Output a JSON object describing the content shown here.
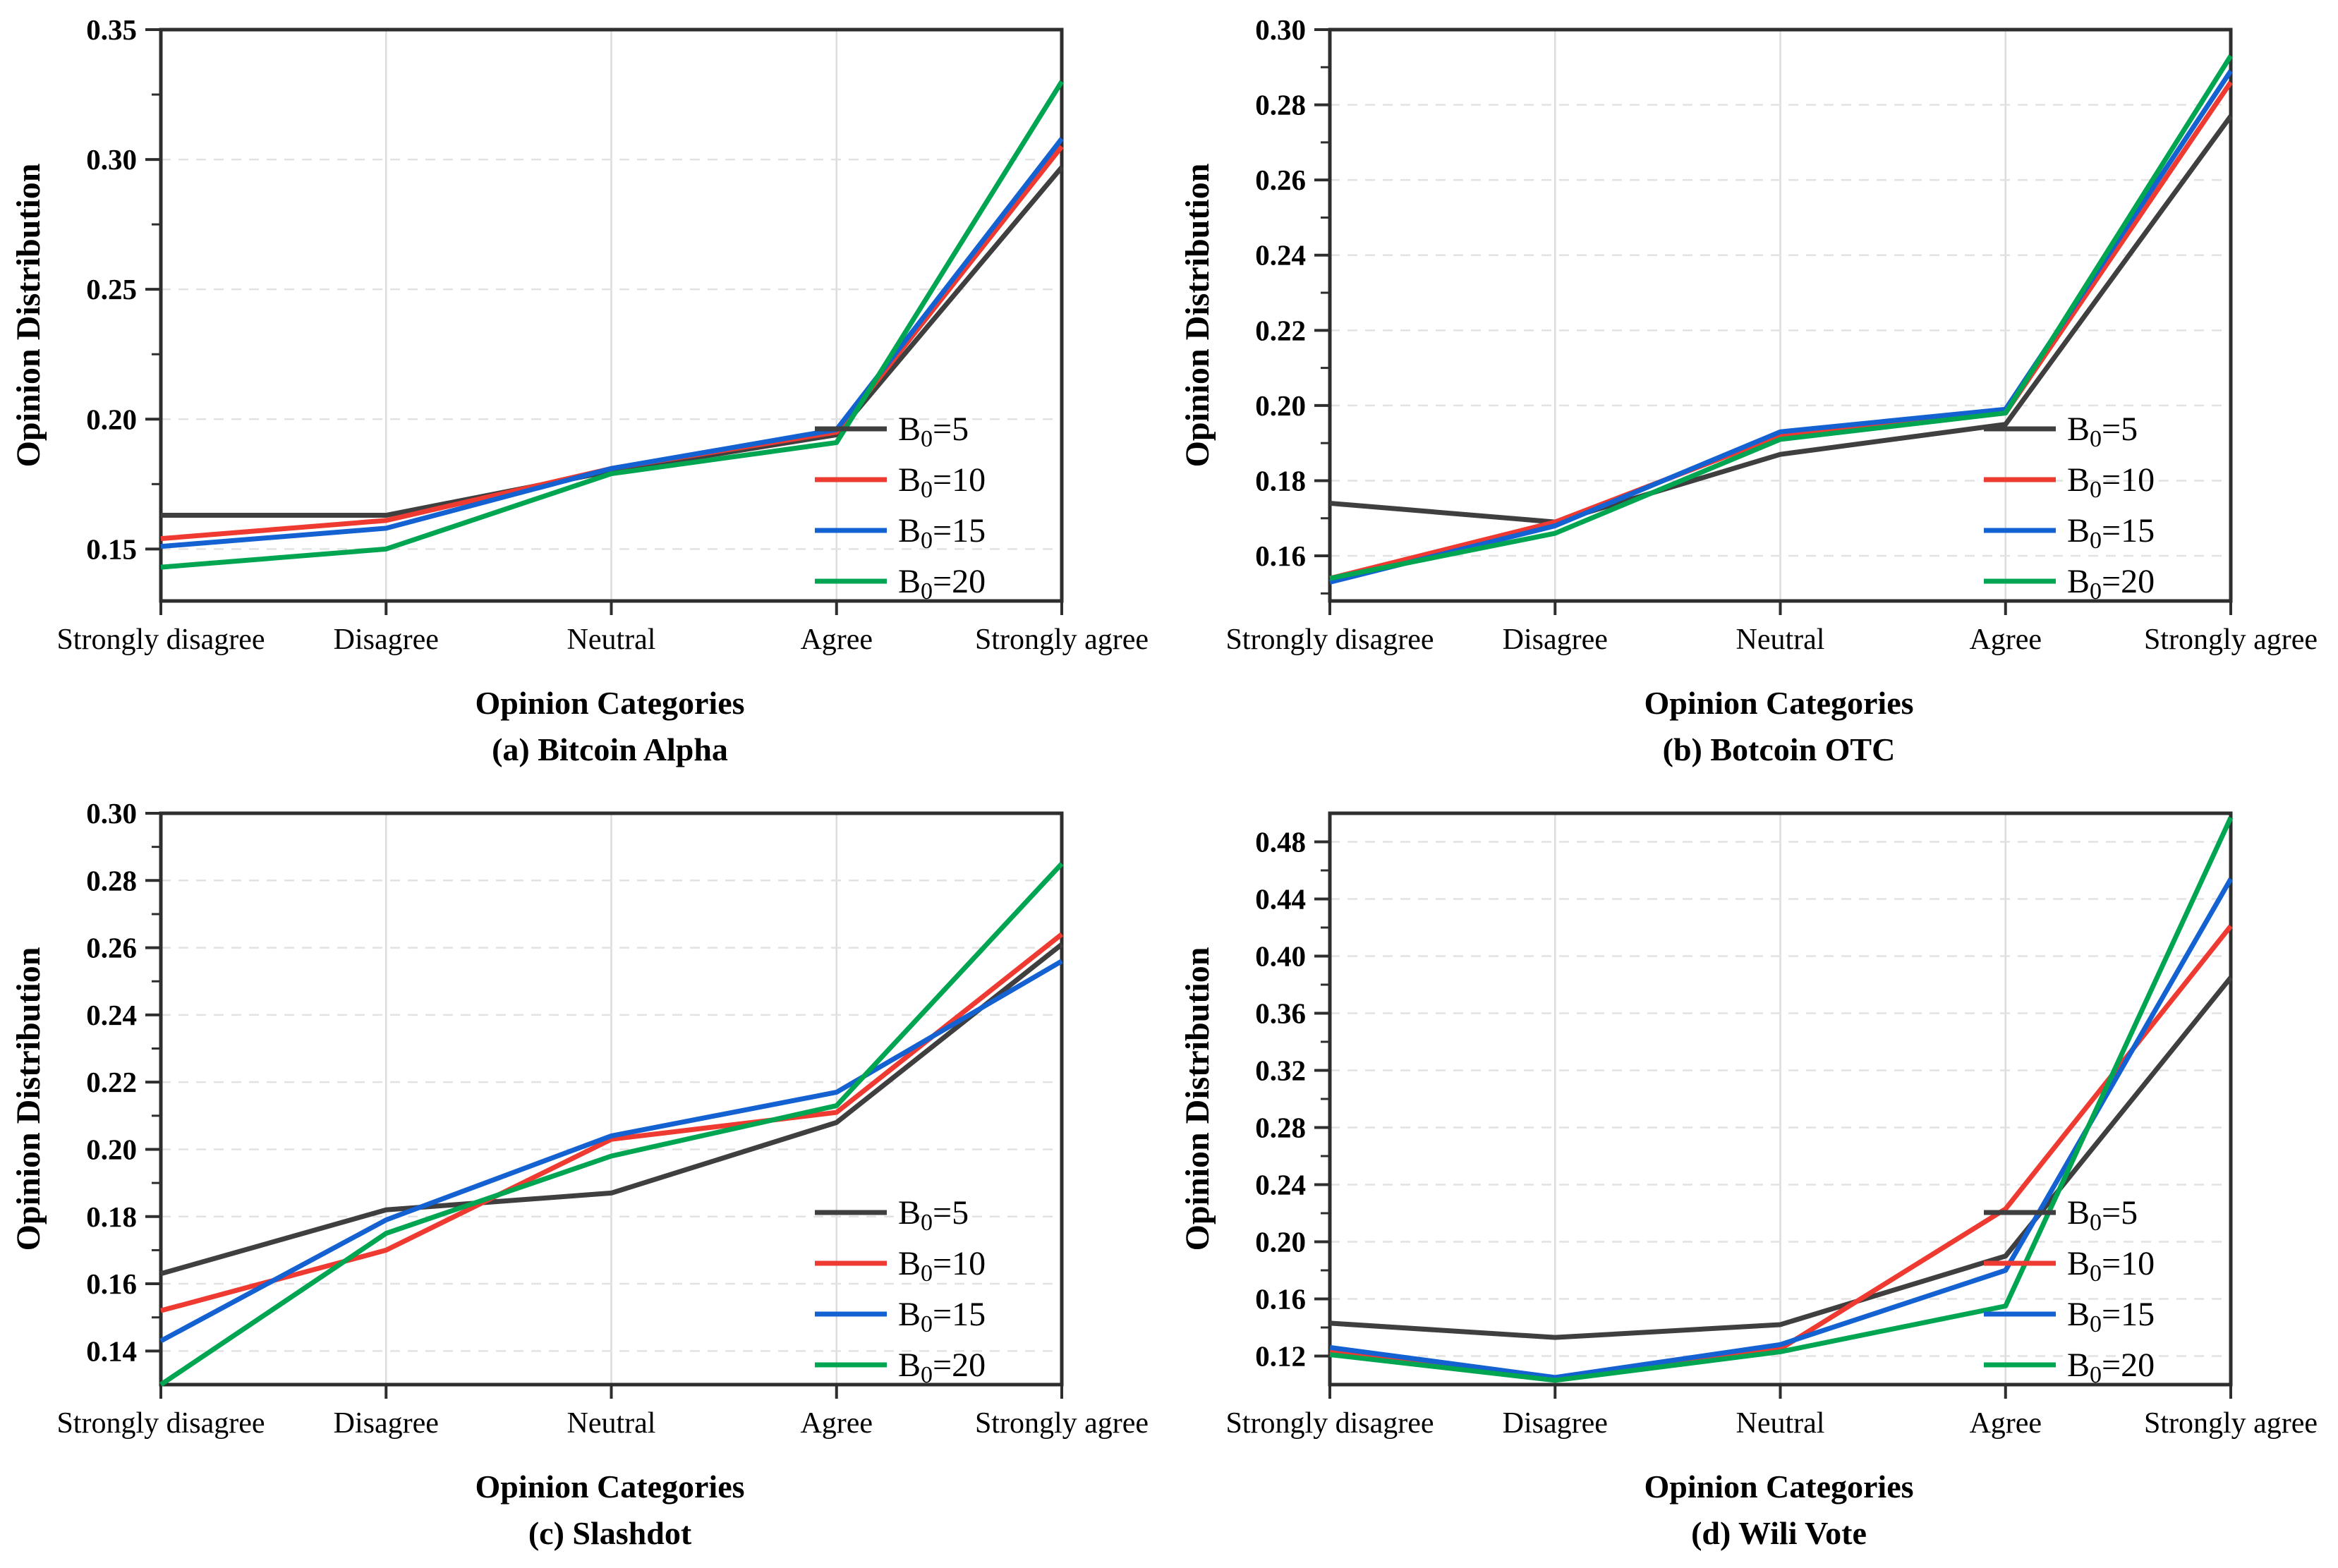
{
  "figure": {
    "description_labels": {
      "x_axis_title": "Opinion Categories",
      "y_axis_title": "Opinion Distribution"
    }
  },
  "chart_data": [
    {
      "type": "line",
      "title": "(a) Bitcoin Alpha",
      "xlabel": "Opinion Categories",
      "ylabel": "Opinion Distribution",
      "categories": [
        "Strongly disagree",
        "Disagree",
        "Neutral",
        "Agree",
        "Strongly agree"
      ],
      "ylim": [
        0.13,
        0.35
      ],
      "ytick_step": 0.05,
      "yticks": [
        0.15,
        0.2,
        0.25,
        0.3,
        0.35
      ],
      "grid": {
        "horizontal": "dashed",
        "vertical": "light-solid"
      },
      "legend_position": "lower right",
      "series": [
        {
          "name": "B0=5",
          "label": {
            "base": "B",
            "sub": "0",
            "rest": "=5"
          },
          "color": "#3f3f3f",
          "values": [
            0.163,
            0.163,
            0.18,
            0.194,
            0.297
          ]
        },
        {
          "name": "B0=10",
          "label": {
            "base": "B",
            "sub": "0",
            "rest": "=10"
          },
          "color": "#ee3a31",
          "values": [
            0.154,
            0.161,
            0.181,
            0.195,
            0.305
          ]
        },
        {
          "name": "B0=15",
          "label": {
            "base": "B",
            "sub": "0",
            "rest": "=15"
          },
          "color": "#1461d2",
          "values": [
            0.151,
            0.158,
            0.181,
            0.196,
            0.308
          ]
        },
        {
          "name": "B0=20",
          "label": {
            "base": "B",
            "sub": "0",
            "rest": "=20"
          },
          "color": "#00a551",
          "values": [
            0.143,
            0.15,
            0.179,
            0.191,
            0.33
          ]
        }
      ]
    },
    {
      "type": "line",
      "title": "(b) Botcoin OTC",
      "xlabel": "Opinion Categories",
      "ylabel": "Opinion Distribution",
      "categories": [
        "Strongly disagree",
        "Disagree",
        "Neutral",
        "Agree",
        "Strongly agree"
      ],
      "ylim": [
        0.148,
        0.3
      ],
      "ytick_step": 0.02,
      "yticks": [
        0.16,
        0.18,
        0.2,
        0.22,
        0.24,
        0.26,
        0.28,
        0.3
      ],
      "grid": {
        "horizontal": "dashed",
        "vertical": "light-solid"
      },
      "legend_position": "lower right",
      "series": [
        {
          "name": "B0=5",
          "label": {
            "base": "B",
            "sub": "0",
            "rest": "=5"
          },
          "color": "#3f3f3f",
          "values": [
            0.174,
            0.169,
            0.187,
            0.195,
            0.277
          ]
        },
        {
          "name": "B0=10",
          "label": {
            "base": "B",
            "sub": "0",
            "rest": "=10"
          },
          "color": "#ee3a31",
          "values": [
            0.154,
            0.169,
            0.192,
            0.198,
            0.286
          ]
        },
        {
          "name": "B0=15",
          "label": {
            "base": "B",
            "sub": "0",
            "rest": "=15"
          },
          "color": "#1461d2",
          "values": [
            0.153,
            0.168,
            0.193,
            0.199,
            0.289
          ]
        },
        {
          "name": "B0=20",
          "label": {
            "base": "B",
            "sub": "0",
            "rest": "=20"
          },
          "color": "#00a551",
          "values": [
            0.154,
            0.166,
            0.191,
            0.198,
            0.293
          ]
        }
      ]
    },
    {
      "type": "line",
      "title": "(c) Slashdot",
      "xlabel": "Opinion Categories",
      "ylabel": "Opinion Distribution",
      "categories": [
        "Strongly disagree",
        "Disagree",
        "Neutral",
        "Agree",
        "Strongly agree"
      ],
      "ylim": [
        0.13,
        0.3
      ],
      "ytick_step": 0.02,
      "yticks": [
        0.14,
        0.16,
        0.18,
        0.2,
        0.22,
        0.24,
        0.26,
        0.28,
        0.3
      ],
      "grid": {
        "horizontal": "dashed",
        "vertical": "light-solid"
      },
      "legend_position": "lower right",
      "series": [
        {
          "name": "B0=5",
          "label": {
            "base": "B",
            "sub": "0",
            "rest": "=5"
          },
          "color": "#3f3f3f",
          "values": [
            0.163,
            0.182,
            0.187,
            0.208,
            0.261
          ]
        },
        {
          "name": "B0=10",
          "label": {
            "base": "B",
            "sub": "0",
            "rest": "=10"
          },
          "color": "#ee3a31",
          "values": [
            0.152,
            0.17,
            0.203,
            0.211,
            0.264
          ]
        },
        {
          "name": "B0=15",
          "label": {
            "base": "B",
            "sub": "0",
            "rest": "=15"
          },
          "color": "#1461d2",
          "values": [
            0.143,
            0.179,
            0.204,
            0.217,
            0.256
          ]
        },
        {
          "name": "B0=20",
          "label": {
            "base": "B",
            "sub": "0",
            "rest": "=20"
          },
          "color": "#00a551",
          "values": [
            0.13,
            0.175,
            0.198,
            0.213,
            0.285
          ]
        }
      ]
    },
    {
      "type": "line",
      "title": "(d) Wili Vote",
      "xlabel": "Opinion Categories",
      "ylabel": "Opinion Distribution",
      "categories": [
        "Strongly disagree",
        "Disagree",
        "Neutral",
        "Agree",
        "Strongly agree"
      ],
      "ylim": [
        0.1,
        0.5
      ],
      "ytick_step": 0.04,
      "yticks": [
        0.12,
        0.16,
        0.2,
        0.24,
        0.28,
        0.32,
        0.36,
        0.4,
        0.44,
        0.48
      ],
      "grid": {
        "horizontal": "dashed",
        "vertical": "light-solid"
      },
      "legend_position": "lower right",
      "series": [
        {
          "name": "B0=5",
          "label": {
            "base": "B",
            "sub": "0",
            "rest": "=5"
          },
          "color": "#3f3f3f",
          "values": [
            0.143,
            0.133,
            0.142,
            0.19,
            0.385
          ]
        },
        {
          "name": "B0=10",
          "label": {
            "base": "B",
            "sub": "0",
            "rest": "=10"
          },
          "color": "#ee3a31",
          "values": [
            0.123,
            0.104,
            0.125,
            0.223,
            0.421
          ]
        },
        {
          "name": "B0=15",
          "label": {
            "base": "B",
            "sub": "0",
            "rest": "=15"
          },
          "color": "#1461d2",
          "values": [
            0.126,
            0.105,
            0.128,
            0.18,
            0.454
          ]
        },
        {
          "name": "B0=20",
          "label": {
            "base": "B",
            "sub": "0",
            "rest": "=20"
          },
          "color": "#00a551",
          "values": [
            0.121,
            0.103,
            0.123,
            0.155,
            0.497
          ]
        }
      ]
    }
  ],
  "style": {
    "spine_color": "#2e2e2e",
    "tick_color": "#2e2e2e",
    "vertical_grid_color": "#dcdcdc",
    "horizontal_grid_color": "#e2e2e2",
    "background": "#ffffff"
  }
}
